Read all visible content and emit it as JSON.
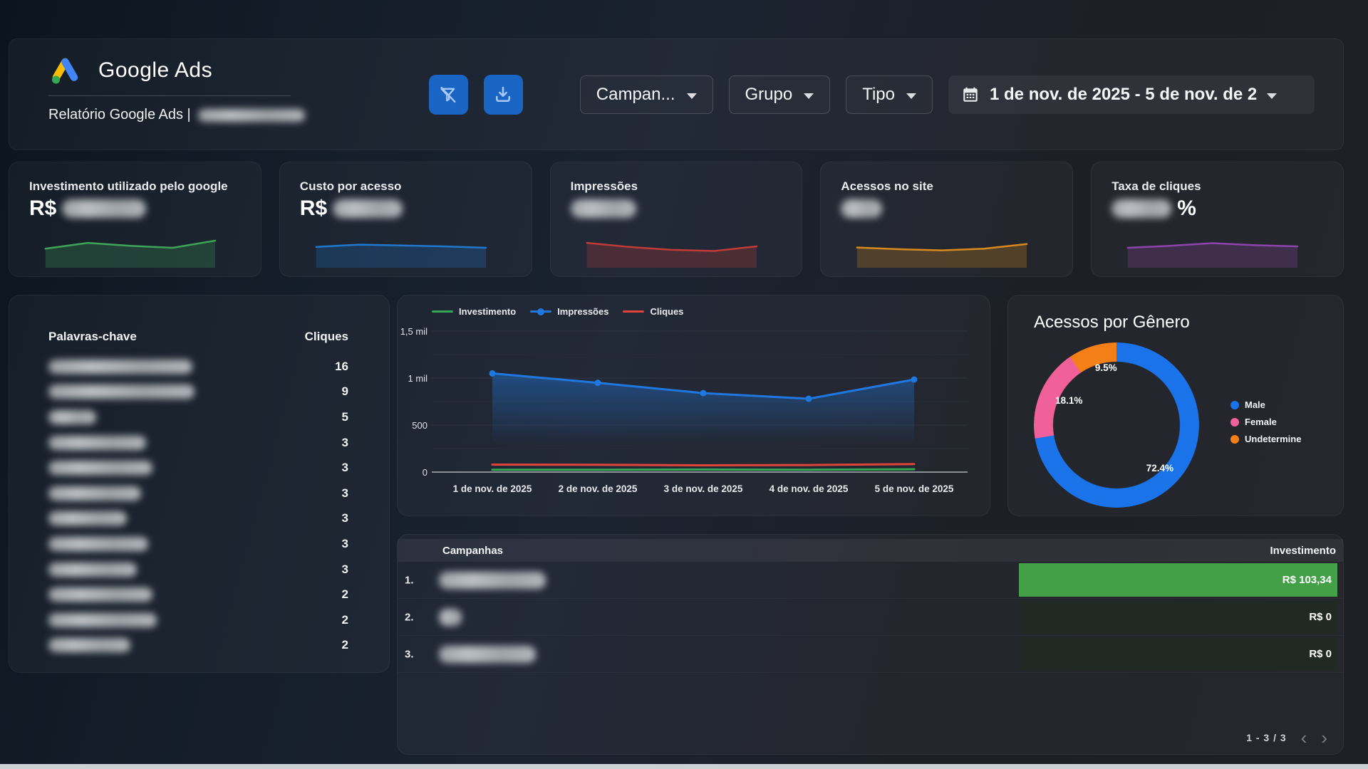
{
  "header": {
    "brand": "Google Ads",
    "report_title_prefix": "Relatório Google Ads |",
    "controls": {
      "campaign_label": "Campan...",
      "group_label": "Grupo",
      "type_label": "Tipo",
      "date_range": "1 de nov. de 2025 - 5 de nov. de 2"
    }
  },
  "kpis": [
    {
      "label": "Investimento utilizado pelo google",
      "prefix": "R$",
      "suffix": "",
      "value_redacted": true
    },
    {
      "label": "Custo por acesso",
      "prefix": "R$",
      "suffix": "",
      "value_redacted": true
    },
    {
      "label": "Impressões",
      "prefix": "",
      "suffix": "",
      "value_redacted": true
    },
    {
      "label": "Acessos no site",
      "prefix": "",
      "suffix": "",
      "value_redacted": true
    },
    {
      "label": "Taxa de cliques",
      "prefix": "",
      "suffix": "%",
      "value_redacted": true
    }
  ],
  "chart_data": [
    {
      "id": "kpi-sparklines",
      "type": "area",
      "note": "sparkline trends for the 5 KPI cards, 5 daily points each (relative scale 0-100)",
      "series": [
        {
          "name": "Investimento utilizado pelo google",
          "color": "#3fa55a",
          "values": [
            52,
            72,
            62,
            55,
            80
          ]
        },
        {
          "name": "Custo por acesso",
          "color": "#2079cf",
          "values": [
            58,
            66,
            63,
            60,
            55
          ]
        },
        {
          "name": "Impressões",
          "color": "#c23b36",
          "values": [
            72,
            58,
            48,
            44,
            60
          ]
        },
        {
          "name": "Acessos no site",
          "color": "#d98a1d",
          "values": [
            56,
            50,
            46,
            52,
            68
          ]
        },
        {
          "name": "Taxa de cliques",
          "color": "#8e44ad",
          "values": [
            55,
            62,
            71,
            64,
            60
          ]
        }
      ]
    },
    {
      "id": "timeseries",
      "type": "line",
      "x": [
        "1 de nov. de 2025",
        "2 de nov. de 2025",
        "3 de nov. de 2025",
        "4 de nov. de 2025",
        "5 de nov. de 2025"
      ],
      "series": [
        {
          "name": "Investimento",
          "color": "#34a853",
          "values": [
            25,
            25,
            27,
            25,
            30
          ],
          "points": false,
          "area": false
        },
        {
          "name": "Impressões",
          "color": "#1f78e0",
          "values": [
            1050,
            950,
            840,
            780,
            985
          ],
          "points": true,
          "area": true
        },
        {
          "name": "Cliques",
          "color": "#e04438",
          "values": [
            80,
            78,
            72,
            75,
            85
          ],
          "points": false,
          "area": false
        }
      ],
      "ylim": [
        0,
        1500
      ],
      "yticks": [
        {
          "v": 0,
          "label": "0"
        },
        {
          "v": 500,
          "label": "500"
        },
        {
          "v": 1000,
          "label": "1 mil"
        },
        {
          "v": 1500,
          "label": "1,5 mil"
        }
      ],
      "minor_gridlines": [
        250,
        750,
        1250
      ],
      "legend_position": "top"
    },
    {
      "id": "gender-donut",
      "type": "pie",
      "title": "Acessos por Gênero",
      "labels": [
        "Male",
        "Female",
        "Undetermine"
      ],
      "values": [
        72.4,
        18.1,
        9.5
      ],
      "value_labels": [
        "72.4%",
        "18.1%",
        "9.5%"
      ],
      "colors": [
        "#1a73e8",
        "#f0609b",
        "#f57f17"
      ],
      "legend_position": "right"
    },
    {
      "id": "keywords-table",
      "type": "table",
      "columns": [
        "Palavras-chave",
        "Cliques"
      ],
      "keywords_redacted": true,
      "clicks": [
        16,
        9,
        5,
        3,
        3,
        3,
        3,
        3,
        3,
        2,
        2,
        2
      ]
    },
    {
      "id": "campaigns-bar",
      "type": "bar",
      "columns": [
        "Campanhas",
        "Investimento"
      ],
      "bar_color": "#43a047",
      "rows": [
        {
          "rank": "1.",
          "label_redacted": true,
          "value": 103.34,
          "value_label": "R$ 103,34"
        },
        {
          "rank": "2.",
          "label_redacted": true,
          "value": 0,
          "value_label": "R$ 0"
        },
        {
          "rank": "3.",
          "label_redacted": true,
          "value": 0,
          "value_label": "R$ 0"
        }
      ],
      "pagination": "1 - 3 / 3"
    }
  ]
}
